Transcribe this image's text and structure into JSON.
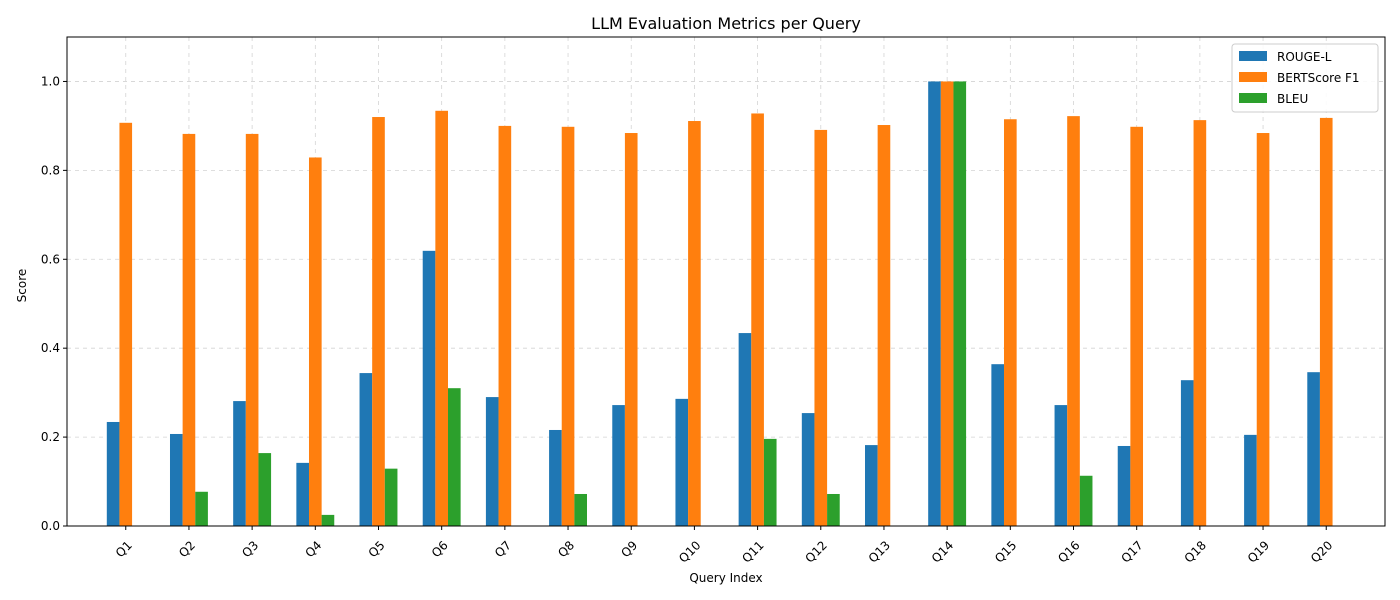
{
  "chart_data": {
    "type": "bar",
    "title": "LLM Evaluation Metrics per Query",
    "xlabel": "Query Index",
    "ylabel": "Score",
    "ylim": [
      0,
      1.1
    ],
    "yticks": [
      "0.0",
      "0.2",
      "0.4",
      "0.6",
      "0.8",
      "1.0"
    ],
    "grid": true,
    "legend_position": "top-right",
    "categories": [
      "Q1",
      "Q2",
      "Q3",
      "Q4",
      "Q5",
      "Q6",
      "Q7",
      "Q8",
      "Q9",
      "Q10",
      "Q11",
      "Q12",
      "Q13",
      "Q14",
      "Q15",
      "Q16",
      "Q17",
      "Q18",
      "Q19",
      "Q20"
    ],
    "series": [
      {
        "name": "ROUGE-L",
        "color": "#1f77b4",
        "values": [
          0.234,
          0.207,
          0.281,
          0.142,
          0.344,
          0.619,
          0.29,
          0.216,
          0.272,
          0.286,
          0.434,
          0.254,
          0.182,
          1.0,
          0.364,
          0.272,
          0.18,
          0.328,
          0.205,
          0.346
        ]
      },
      {
        "name": "BERTScore F1",
        "color": "#ff7f0e",
        "values": [
          0.907,
          0.882,
          0.882,
          0.829,
          0.92,
          0.934,
          0.9,
          0.898,
          0.884,
          0.911,
          0.928,
          0.891,
          0.902,
          1.0,
          0.915,
          0.922,
          0.898,
          0.913,
          0.884,
          0.918
        ]
      },
      {
        "name": "BLEU",
        "color": "#2ca02c",
        "values": [
          0.0,
          0.077,
          0.164,
          0.025,
          0.129,
          0.31,
          0.0,
          0.072,
          0.0,
          0.0,
          0.196,
          0.072,
          0.0,
          1.0,
          0.0,
          0.113,
          0.0,
          0.0,
          0.0,
          0.0
        ]
      }
    ]
  }
}
